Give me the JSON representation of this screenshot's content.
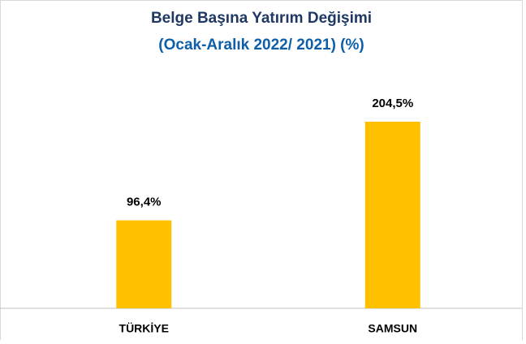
{
  "chart_data": {
    "type": "bar",
    "title": "Belge Başına Yatırım Değişimi",
    "subtitle": "(Ocak-Aralık 2022/ 2021) (%)",
    "categories": [
      "TÜRKİYE",
      "SAMSUN"
    ],
    "values": [
      96.4,
      204.5
    ],
    "value_labels": [
      "96,4%",
      "204,5%"
    ],
    "color": "#ffc000"
  }
}
